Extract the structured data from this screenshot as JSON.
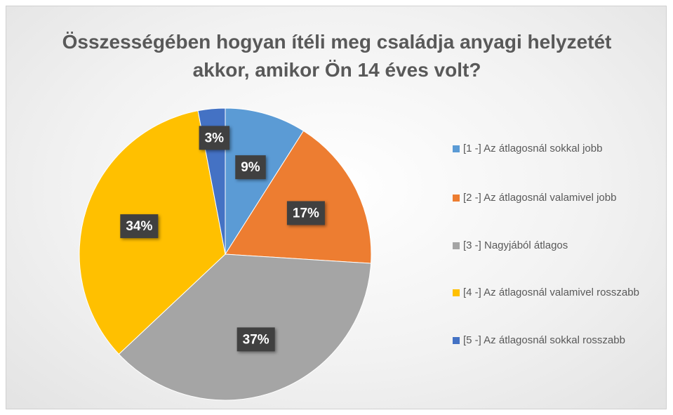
{
  "chart_data": {
    "type": "pie",
    "title": "Összességében hogyan ítéli meg családja anyagi helyzetét akkor, amikor Ön 14 éves volt?",
    "categories": [
      "[1 -] Az átlagosnál sokkal jobb",
      "[2 -] Az átlagosnál valamivel jobb",
      "[3 -] Nagyjából átlagos",
      "[4 -] Az átlagosnál valamivel rosszabb",
      "[5 -] Az átlagosnál sokkal rosszabb"
    ],
    "values": [
      9,
      17,
      37,
      34,
      3
    ],
    "value_labels": [
      "9%",
      "17%",
      "37%",
      "34%",
      "3%"
    ],
    "colors": [
      "#5b9bd5",
      "#ed7d31",
      "#a5a5a5",
      "#ffc000",
      "#4472c4"
    ],
    "legend": "right"
  }
}
